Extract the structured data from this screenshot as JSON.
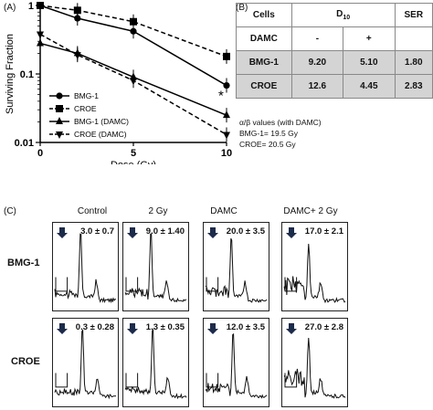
{
  "panelA": {
    "label": "(A)",
    "chart_data": {
      "type": "line",
      "xlabel": "Dose (Gy)",
      "ylabel": "Surviving Fraction",
      "xlim": [
        0,
        10
      ],
      "ylim": [
        0.01,
        1
      ],
      "yscale": "log",
      "xticks": [
        "0",
        "5",
        "10"
      ],
      "yticks": [
        "0.01",
        "0.1",
        "1"
      ],
      "x": [
        0,
        2,
        5,
        10
      ],
      "series": [
        {
          "name": "BMG-1",
          "values": [
            1,
            0.65,
            0.42,
            0.068
          ],
          "marker": "circle",
          "style": "solid"
        },
        {
          "name": "CROE",
          "values": [
            1,
            0.85,
            0.58,
            0.18
          ],
          "marker": "square",
          "style": "dashed"
        },
        {
          "name": "BMG-1 (DAMC)",
          "values": [
            0.28,
            0.2,
            0.09,
            0.025
          ],
          "marker": "triangle",
          "style": "solid"
        },
        {
          "name": "CROE (DAMC)",
          "values": [
            0.38,
            0.19,
            0.08,
            0.013
          ],
          "marker": "triangle-down",
          "style": "dashed"
        }
      ],
      "annotation": "*",
      "legend_position": "bottom-left"
    }
  },
  "panelB": {
    "label": "(B)",
    "header": {
      "cells": "Cells",
      "d10": "D",
      "d10_sub": "10",
      "ser": "SER"
    },
    "damc_row": {
      "label": "DAMC",
      "minus": "-",
      "plus": "+",
      "blank": ""
    },
    "rows": [
      {
        "cell": "BMG-1",
        "minus": "9.20",
        "plus": "5.10",
        "ser": "1.80"
      },
      {
        "cell": "CROE",
        "minus": "12.6",
        "plus": "4.45",
        "ser": "2.83"
      }
    ],
    "note_title": "α/β values (with DAMC)",
    "note_lines": [
      "BMG-1= 19.5 Gy",
      "CROE= 20.5 Gy"
    ]
  },
  "panelC": {
    "label": "(C)",
    "columns": [
      "Control",
      "2 Gy",
      "DAMC",
      "DAMC+ 2 Gy"
    ],
    "rows": [
      {
        "name": "BMG-1",
        "values": [
          "3.0 ± 0.7",
          "9.0 ± 1.40",
          "20.0 ± 3.5",
          "17.0 ± 2.1"
        ]
      },
      {
        "name": "CROE",
        "values": [
          "0.3 ± 0.28",
          "1.3 ± 0.35",
          "12.0 ± 3.5",
          "27.0 ± 2.8"
        ]
      }
    ]
  }
}
